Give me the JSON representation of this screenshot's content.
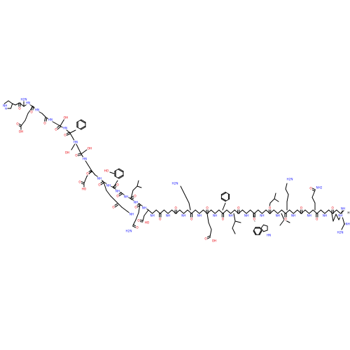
{
  "molecule": {
    "atom_labels": {
      "O": "O",
      "N": "N",
      "NH": "NH",
      "HN": "HN",
      "NH2": "NH2",
      "H2N": "H2N",
      "OH": "OH",
      "HO": "HO",
      "H": "H"
    },
    "colors": {
      "carbon_bond": "#000000",
      "oxygen": "#e8000b",
      "nitrogen": "#1a1aff",
      "text": "#000000"
    }
  }
}
